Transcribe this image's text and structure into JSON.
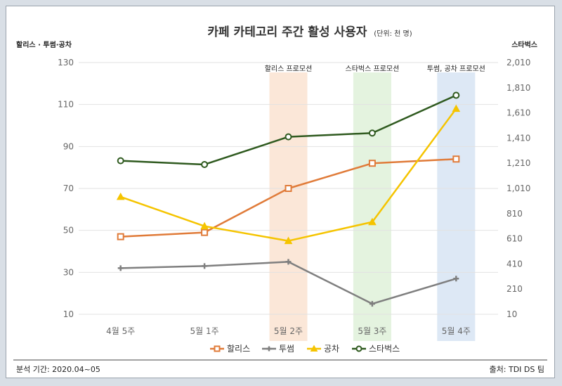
{
  "chart_data": {
    "type": "line",
    "title": "카페 카테고리 주간 활성 사용자",
    "title_unit": "(단위: 천 명)",
    "left_axis_label": "할리스 · 투썸·공차",
    "right_axis_label": "스타벅스",
    "categories": [
      "4월 5주",
      "5월 1주",
      "5월 2주",
      "5월 3주",
      "5월 4주"
    ],
    "left_axis": {
      "min": 10,
      "max": 130,
      "ticks": [
        "130",
        "110",
        "90",
        "70",
        "50",
        "30",
        "10"
      ]
    },
    "right_axis": {
      "min": 10,
      "max": 2010,
      "ticks": [
        "2,010",
        "1,810",
        "1,610",
        "1,410",
        "1,210",
        "1,010",
        "810",
        "610",
        "410",
        "210",
        "10"
      ]
    },
    "series": [
      {
        "name": "할리스",
        "axis": "left",
        "color": "#e07b39",
        "marker": "square",
        "values": [
          47,
          49,
          70,
          82,
          84
        ]
      },
      {
        "name": "투썸",
        "axis": "left",
        "color": "#7f7f7f",
        "marker": "plus",
        "values": [
          32,
          33,
          35,
          15,
          27
        ]
      },
      {
        "name": "공차",
        "axis": "left",
        "color": "#f5c400",
        "marker": "triangle",
        "values": [
          66,
          52,
          45,
          54,
          108
        ]
      },
      {
        "name": "스타벅스",
        "axis": "right",
        "color": "#2f5a1f",
        "marker": "circle",
        "values": [
          1230,
          1200,
          1420,
          1450,
          1750
        ]
      }
    ],
    "promotions": [
      {
        "label": "할리스 프로모션",
        "category_index": 2,
        "color": "#fbe7d8"
      },
      {
        "label": "스타벅스 프로모션",
        "category_index": 3,
        "color": "#e4f3df"
      },
      {
        "label": "투썸, 공차 프로모션",
        "category_index": 4,
        "color": "#dde8f5"
      }
    ],
    "legend_position": "bottom",
    "grid": true
  },
  "footer": {
    "period": "분석 기간: 2020.04~05",
    "source": "출처: TDI DS 팀"
  }
}
